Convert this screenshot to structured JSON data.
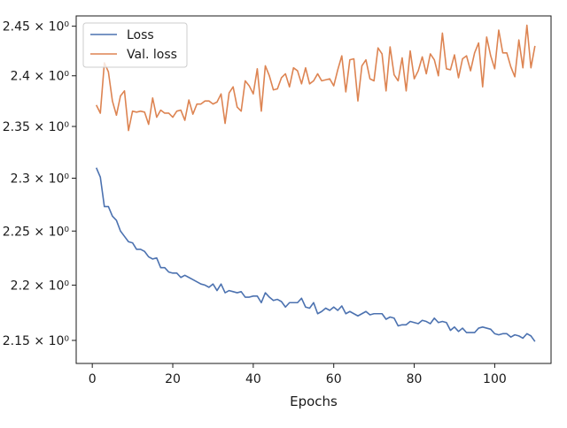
{
  "chart_data": {
    "type": "line",
    "title": "",
    "xlabel": "Epochs",
    "ylabel": "",
    "xlim": [
      -4,
      114
    ],
    "ylim": [
      2.1295,
      2.4605
    ],
    "y_scale": "log",
    "x_ticks": [
      0,
      20,
      40,
      60,
      80,
      100
    ],
    "y_ticks": [
      {
        "value": 2.15,
        "label": "2.15 × 10⁰"
      },
      {
        "value": 2.2,
        "label": "2.2 × 10⁰"
      },
      {
        "value": 2.25,
        "label": "2.25 × 10⁰"
      },
      {
        "value": 2.3,
        "label": "2.3 × 10⁰"
      },
      {
        "value": 2.35,
        "label": "2.35 × 10⁰"
      },
      {
        "value": 2.4,
        "label": "2.4 × 10⁰"
      },
      {
        "value": 2.45,
        "label": "2.45 × 10⁰"
      }
    ],
    "grid": false,
    "legend_position": "top-left",
    "x": [
      1,
      2,
      3,
      4,
      5,
      6,
      7,
      8,
      9,
      10,
      11,
      12,
      13,
      14,
      15,
      16,
      17,
      18,
      19,
      20,
      21,
      22,
      23,
      24,
      25,
      26,
      27,
      28,
      29,
      30,
      31,
      32,
      33,
      34,
      35,
      36,
      37,
      38,
      39,
      40,
      41,
      42,
      43,
      44,
      45,
      46,
      47,
      48,
      49,
      50,
      51,
      52,
      53,
      54,
      55,
      56,
      57,
      58,
      59,
      60,
      61,
      62,
      63,
      64,
      65,
      66,
      67,
      68,
      69,
      70,
      71,
      72,
      73,
      74,
      75,
      76,
      77,
      78,
      79,
      80,
      81,
      82,
      83,
      84,
      85,
      86,
      87,
      88,
      89,
      90,
      91,
      92,
      93,
      94,
      95,
      96,
      97,
      98,
      99,
      100,
      101,
      102,
      103,
      104,
      105,
      106,
      107,
      108,
      109,
      110
    ],
    "series": [
      {
        "name": "Loss",
        "color": "#4c72b0",
        "values": [
          2.31,
          2.301,
          2.273,
          2.273,
          2.264,
          2.26,
          2.25,
          2.245,
          2.24,
          2.239,
          2.233,
          2.233,
          2.231,
          2.226,
          2.224,
          2.225,
          2.216,
          2.216,
          2.212,
          2.211,
          2.211,
          2.207,
          2.209,
          2.207,
          2.205,
          2.203,
          2.201,
          2.2,
          2.198,
          2.201,
          2.195,
          2.201,
          2.193,
          2.195,
          2.194,
          2.193,
          2.194,
          2.189,
          2.189,
          2.19,
          2.19,
          2.184,
          2.193,
          2.189,
          2.186,
          2.187,
          2.185,
          2.18,
          2.184,
          2.184,
          2.184,
          2.188,
          2.18,
          2.179,
          2.184,
          2.174,
          2.176,
          2.179,
          2.177,
          2.18,
          2.177,
          2.181,
          2.174,
          2.176,
          2.174,
          2.172,
          2.174,
          2.176,
          2.173,
          2.174,
          2.174,
          2.174,
          2.169,
          2.171,
          2.17,
          2.163,
          2.164,
          2.164,
          2.167,
          2.166,
          2.165,
          2.168,
          2.167,
          2.165,
          2.17,
          2.166,
          2.167,
          2.166,
          2.159,
          2.162,
          2.158,
          2.161,
          2.157,
          2.157,
          2.157,
          2.161,
          2.162,
          2.161,
          2.16,
          2.156,
          2.155,
          2.156,
          2.156,
          2.153,
          2.155,
          2.154,
          2.152,
          2.156,
          2.154,
          2.149
        ]
      },
      {
        "name": "Val. loss",
        "color": "#dd8452",
        "values": [
          2.371,
          2.363,
          2.413,
          2.404,
          2.375,
          2.361,
          2.38,
          2.385,
          2.346,
          2.365,
          2.364,
          2.365,
          2.364,
          2.352,
          2.378,
          2.359,
          2.366,
          2.363,
          2.363,
          2.359,
          2.365,
          2.366,
          2.356,
          2.376,
          2.362,
          2.372,
          2.372,
          2.375,
          2.375,
          2.372,
          2.374,
          2.382,
          2.353,
          2.383,
          2.389,
          2.369,
          2.365,
          2.395,
          2.39,
          2.382,
          2.407,
          2.365,
          2.41,
          2.4,
          2.386,
          2.387,
          2.398,
          2.402,
          2.389,
          2.408,
          2.405,
          2.392,
          2.408,
          2.392,
          2.395,
          2.402,
          2.395,
          2.396,
          2.397,
          2.39,
          2.406,
          2.42,
          2.384,
          2.416,
          2.417,
          2.375,
          2.41,
          2.416,
          2.397,
          2.395,
          2.428,
          2.422,
          2.385,
          2.429,
          2.401,
          2.395,
          2.418,
          2.385,
          2.425,
          2.397,
          2.405,
          2.419,
          2.402,
          2.422,
          2.416,
          2.4,
          2.443,
          2.407,
          2.406,
          2.421,
          2.398,
          2.417,
          2.42,
          2.405,
          2.423,
          2.433,
          2.389,
          2.439,
          2.42,
          2.407,
          2.446,
          2.423,
          2.423,
          2.409,
          2.399,
          2.436,
          2.408,
          2.451,
          2.408,
          2.43
        ]
      }
    ]
  }
}
